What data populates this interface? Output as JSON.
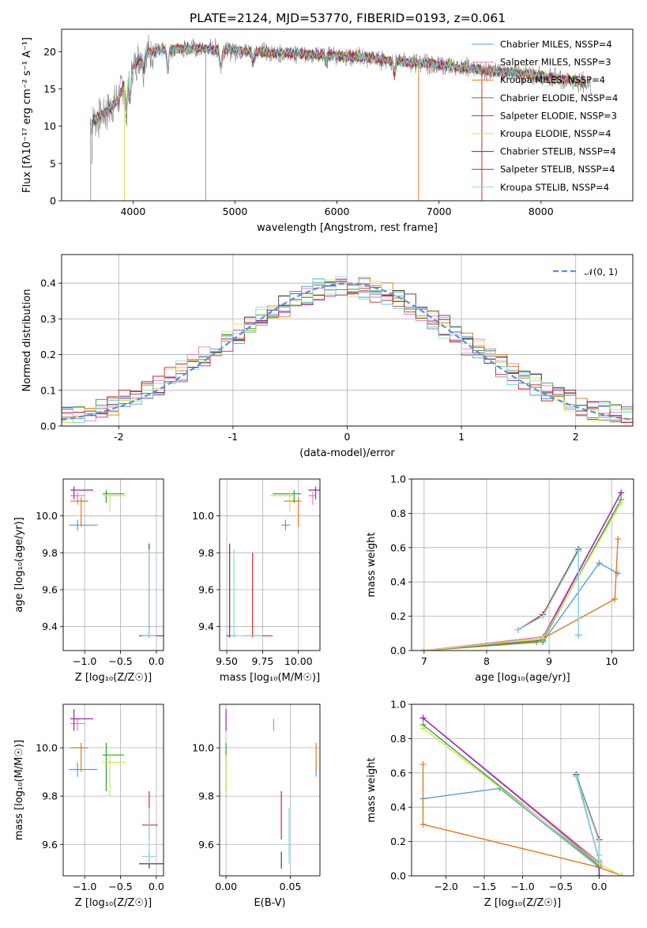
{
  "title": "PLATE=2124, MJD=53770, FIBERID=0193, z=0.061",
  "colors": {
    "chabrier_miles": "#5a9bd4",
    "salpeter_miles": "#e377c2",
    "kroupa_miles": "#e07b1f",
    "chabrier_elodie": "#2ca02c",
    "salpeter_elodie": "#9c27b0",
    "kroupa_elodie": "#d4e157",
    "chabrier_stelib": "#444444",
    "salpeter_stelib": "#d62728",
    "kroupa_stelib": "#80deea",
    "data": "#808080",
    "normal": "#5b8fdc"
  },
  "chart_data": [
    {
      "id": "spectrum",
      "type": "line",
      "xlabel": "wavelength [Angstrom, rest frame]",
      "ylabel": "Flux [fλ10⁻¹⁷ erg cm⁻² s⁻¹ A⁻¹]",
      "xlim": [
        3300,
        8900
      ],
      "ylim": [
        0,
        23
      ],
      "xticks": [
        4000,
        5000,
        6000,
        7000,
        8000
      ],
      "yticks": [
        0,
        5,
        10,
        15,
        20
      ],
      "legend_position": "top-right",
      "legend": [
        "Chabrier MILES, NSSP=4",
        "Salpeter MILES, NSSP=3",
        "Kroupa MILES, NSSP=4",
        "Chabrier ELODIE, NSSP=4",
        "Salpeter ELODIE, NSSP=3",
        "Kroupa ELODIE, NSSP=4",
        "Chabrier STELIB, NSSP=4",
        "Salpeter STELIB, NSSP=4",
        "Kroupa STELIB, NSSP=4"
      ],
      "continuum": {
        "x": [
          3580,
          3700,
          3850,
          3950,
          4100,
          4300,
          4500,
          4800,
          5000,
          5300,
          5600,
          5900,
          6200,
          6500,
          6800,
          7100,
          7400,
          7700,
          8000,
          8300,
          8500
        ],
        "y": [
          10.5,
          11.5,
          13.5,
          17,
          19.8,
          20.2,
          20.5,
          20.3,
          20.2,
          19.9,
          19.7,
          19.6,
          19.3,
          18.8,
          18.5,
          18.1,
          17.6,
          17.2,
          16.7,
          16.1,
          15.8
        ]
      }
    },
    {
      "id": "residuals",
      "type": "histogram",
      "xlabel": "(data-model)/error",
      "ylabel": "Normed distribution",
      "xlim": [
        -2.5,
        2.5
      ],
      "ylim": [
        0,
        0.48
      ],
      "xticks": [
        -2,
        -1,
        0,
        1,
        2
      ],
      "yticks": [
        0.0,
        0.1,
        0.2,
        0.3,
        0.4
      ],
      "legend": [
        "𝒩(0, 1)"
      ],
      "legend_position": "top-right",
      "bin_width": 0.1
    },
    {
      "id": "age_vs_Z",
      "type": "scatter",
      "xlabel": "Z [log₁₀(Z/Z☉)]",
      "ylabel": "age  [log₁₀(age/yr)]",
      "xlim": [
        -1.3,
        0.1
      ],
      "ylim": [
        9.27,
        10.2
      ],
      "xticks": [
        -1.0,
        -0.5,
        0.0
      ],
      "yticks": [
        9.4,
        9.6,
        9.8,
        10.0
      ]
    },
    {
      "id": "age_vs_mass",
      "type": "scatter",
      "xlabel": "mass [log₁₀(M/M☉)]",
      "ylabel": "",
      "xlim": [
        9.45,
        10.15
      ],
      "ylim": [
        9.27,
        10.2
      ],
      "xticks": [
        9.5,
        9.75,
        10.0
      ],
      "yticks": [
        9.4,
        9.6,
        9.8,
        10.0
      ]
    },
    {
      "id": "weight_vs_age",
      "type": "line",
      "xlabel": "age  [log₁₀(age/yr)]",
      "ylabel": "mass weight",
      "xlim": [
        6.8,
        10.35
      ],
      "ylim": [
        0,
        1
      ],
      "xticks": [
        7,
        8,
        9,
        10
      ],
      "yticks": [
        0.0,
        0.2,
        0.4,
        0.6,
        0.8,
        1.0
      ]
    },
    {
      "id": "mass_vs_Z",
      "type": "scatter",
      "xlabel": "Z [log₁₀(Z/Z☉)]",
      "ylabel": "mass [log₁₀(M/M☉)]",
      "xlim": [
        -1.3,
        0.1
      ],
      "ylim": [
        9.47,
        10.18
      ],
      "xticks": [
        -1.0,
        -0.5,
        0.0
      ],
      "yticks": [
        9.6,
        9.8,
        10.0
      ]
    },
    {
      "id": "mass_vs_ebv",
      "type": "scatter",
      "xlabel": "E(B-V)",
      "ylabel": "",
      "xlim": [
        -0.005,
        0.073
      ],
      "ylim": [
        9.47,
        10.18
      ],
      "xticks": [
        0.0,
        0.05
      ],
      "yticks": [
        9.6,
        9.8,
        10.0
      ]
    },
    {
      "id": "weight_vs_Z",
      "type": "line",
      "xlabel": "Z [log₁₀(Z/Z☉)]",
      "ylabel": "mass weight",
      "xlim": [
        -2.45,
        0.45
      ],
      "ylim": [
        0,
        1
      ],
      "xticks": [
        -2.0,
        -1.5,
        -1.0,
        -0.5,
        0.0
      ],
      "yticks": [
        0.0,
        0.2,
        0.4,
        0.6,
        0.8,
        1.0
      ]
    }
  ]
}
